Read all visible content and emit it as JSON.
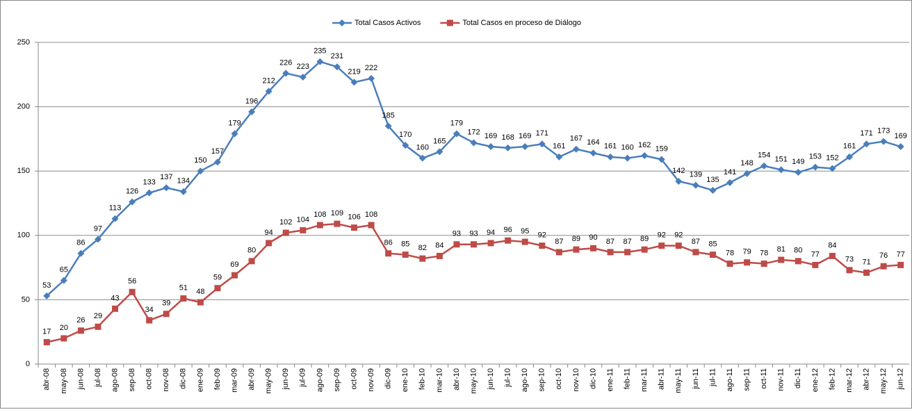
{
  "chart_data": {
    "type": "line",
    "categories": [
      "abr-08",
      "may-08",
      "jun-08",
      "jul-08",
      "ago-08",
      "sep-08",
      "oct-08",
      "nov-08",
      "dic-08",
      "ene-09",
      "feb-09",
      "mar-09",
      "abr-09",
      "may-09",
      "jun-09",
      "jul-09",
      "ago-09",
      "sep-09",
      "oct-09",
      "nov-09",
      "dic-09",
      "ene-10",
      "feb-10",
      "mar-10",
      "abr-10",
      "may-10",
      "jun-10",
      "jul-10",
      "ago-10",
      "sep-10",
      "oct-10",
      "nov-10",
      "dic-10",
      "ene-11",
      "feb-11",
      "mar-11",
      "abr-11",
      "may-11",
      "jun-11",
      "jul-11",
      "ago-11",
      "sep-11",
      "oct-11",
      "nov-11",
      "dic-11",
      "ene-12",
      "feb-12",
      "mar-12",
      "abr-12",
      "may-12",
      "jun-12"
    ],
    "series": [
      {
        "name": "Total Casos Activos",
        "color": "#4a7ebb",
        "marker": "diamond",
        "values": [
          53,
          65,
          86,
          97,
          113,
          126,
          133,
          137,
          134,
          150,
          157,
          179,
          196,
          212,
          226,
          223,
          235,
          231,
          219,
          222,
          185,
          170,
          160,
          165,
          179,
          172,
          169,
          168,
          169,
          171,
          161,
          167,
          164,
          161,
          160,
          162,
          159,
          142,
          139,
          135,
          141,
          148,
          154,
          151,
          149,
          153,
          152,
          161,
          171,
          173,
          169
        ]
      },
      {
        "name": "Total Casos en proceso de Diálogo",
        "color": "#be4b48",
        "marker": "square",
        "values": [
          17,
          20,
          26,
          29,
          43,
          56,
          34,
          39,
          51,
          48,
          59,
          69,
          80,
          94,
          102,
          104,
          108,
          109,
          106,
          108,
          86,
          85,
          82,
          84,
          93,
          93,
          94,
          96,
          95,
          92,
          87,
          89,
          90,
          87,
          87,
          89,
          92,
          92,
          87,
          85,
          78,
          79,
          78,
          81,
          80,
          77,
          84,
          73,
          71,
          76,
          77
        ]
      }
    ],
    "ylim": [
      0,
      250
    ],
    "yticks": [
      0,
      50,
      100,
      150,
      200,
      250
    ],
    "grid": true,
    "legend": "top"
  }
}
